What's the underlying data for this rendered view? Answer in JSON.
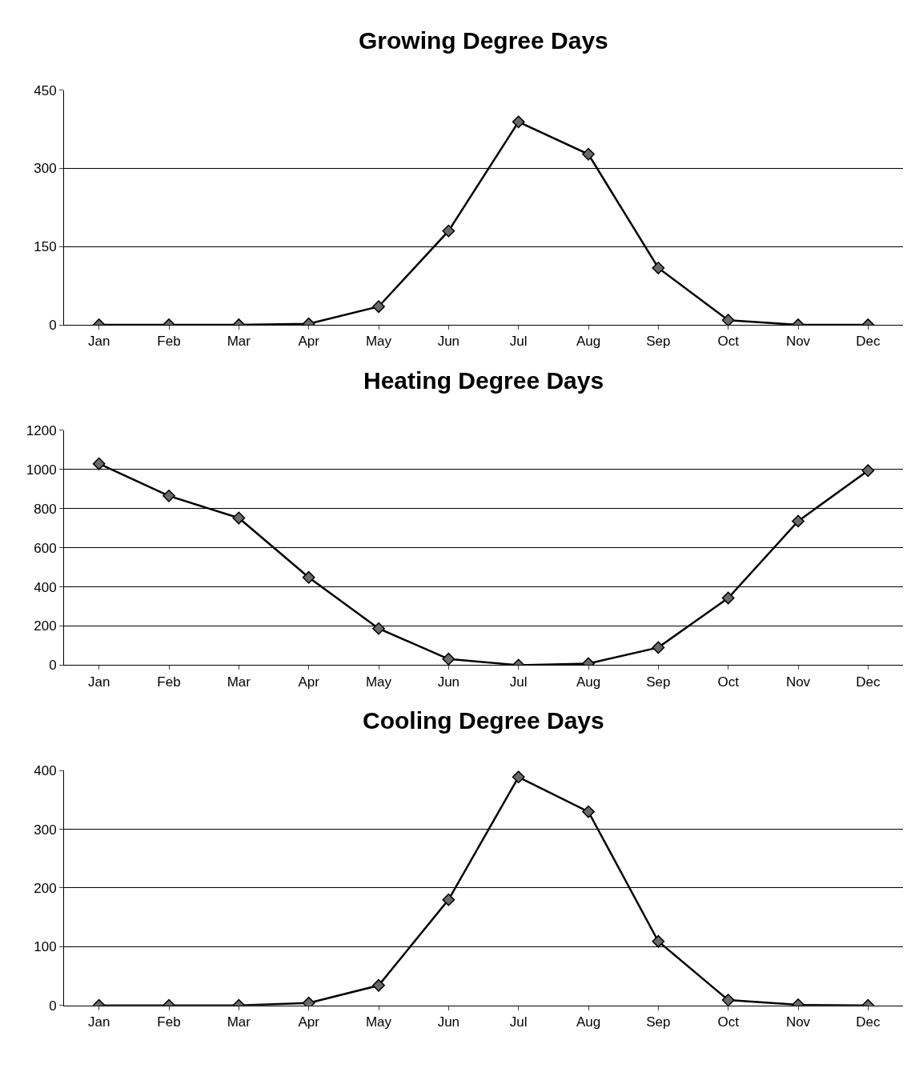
{
  "chart_data": [
    {
      "type": "line",
      "title": "Growing Degree Days",
      "categories": [
        "Jan",
        "Feb",
        "Mar",
        "Apr",
        "May",
        "Jun",
        "Jul",
        "Aug",
        "Sep",
        "Oct",
        "Nov",
        "Dec"
      ],
      "series": [
        {
          "color": "#000000",
          "values": [
            0,
            0,
            0,
            2,
            35,
            180,
            389,
            327,
            109,
            9,
            0,
            0
          ]
        }
      ],
      "ylim": [
        0,
        450
      ],
      "yticks": [
        0,
        150,
        300,
        450
      ],
      "grid": "y",
      "marker": "diamond",
      "line_style": "solid"
    },
    {
      "type": "line",
      "title": "Heating Degree Days",
      "categories": [
        "Jan",
        "Feb",
        "Mar",
        "Apr",
        "May",
        "Jun",
        "Jul",
        "Aug",
        "Sep",
        "Oct",
        "Nov",
        "Dec"
      ],
      "series": [
        {
          "color": "#000000",
          "values": [
            1029,
            865,
            752,
            448,
            187,
            31,
            0,
            8,
            90,
            343,
            736,
            994
          ]
        }
      ],
      "ylim": [
        0,
        1200
      ],
      "yticks": [
        0,
        200,
        400,
        600,
        800,
        1000,
        1200
      ],
      "grid": "y",
      "marker": "diamond",
      "line_style": "solid"
    },
    {
      "type": "line",
      "title": "Cooling Degree Days",
      "categories": [
        "Jan",
        "Feb",
        "Mar",
        "Apr",
        "May",
        "Jun",
        "Jul",
        "Aug",
        "Sep",
        "Oct",
        "Nov",
        "Dec"
      ],
      "series": [
        {
          "color": "#000000",
          "values": [
            0,
            0,
            0,
            4,
            34,
            180,
            389,
            330,
            109,
            9,
            1,
            0
          ]
        }
      ],
      "ylim": [
        0,
        400
      ],
      "yticks": [
        0,
        100,
        200,
        300,
        400
      ],
      "grid": "y",
      "marker": "diamond",
      "line_style": "solid"
    }
  ]
}
